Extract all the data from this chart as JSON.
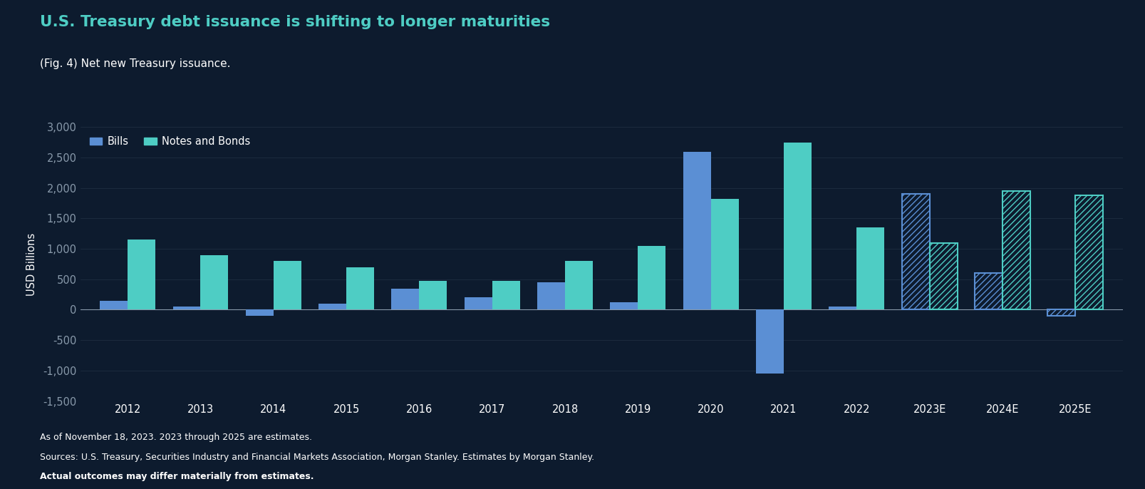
{
  "title": "U.S. Treasury debt issuance is shifting to longer maturities",
  "subtitle": "(Fig. 4) Net new Treasury issuance.",
  "ylabel": "USD Billions",
  "footnote1": "As of November 18, 2023. 2023 through 2025 are estimates.",
  "footnote2": "Sources: U.S. Treasury, Securities Industry and Financial Markets Association, Morgan Stanley. Estimates by Morgan Stanley.",
  "footnote3": "Actual outcomes may differ materially from estimates.",
  "categories": [
    "2012",
    "2013",
    "2014",
    "2015",
    "2016",
    "2017",
    "2018",
    "2019",
    "2020",
    "2021",
    "2022",
    "2023E",
    "2024E",
    "2025E"
  ],
  "is_estimate": [
    false,
    false,
    false,
    false,
    false,
    false,
    false,
    false,
    false,
    false,
    false,
    true,
    true,
    true
  ],
  "bills": [
    150,
    50,
    -100,
    100,
    350,
    200,
    450,
    125,
    2600,
    -1050,
    50,
    1900,
    600,
    -100
  ],
  "notes_bonds": [
    1150,
    900,
    800,
    700,
    475,
    475,
    800,
    1050,
    1825,
    2750,
    1350,
    1100,
    1950,
    1875
  ],
  "bg_color": "#0d1b2e",
  "bills_color": "#5b8fd4",
  "notes_color": "#4ecdc4",
  "title_color": "#4ecdc4",
  "subtitle_color": "#ffffff",
  "text_color": "#ffffff",
  "axis_color": "#8899aa",
  "grid_color": "#1e2e40",
  "zero_line_color": "#8899aa",
  "ylim": [
    -1500,
    3000
  ],
  "yticks": [
    -1500,
    -1000,
    -500,
    0,
    500,
    1000,
    1500,
    2000,
    2500,
    3000
  ],
  "bar_width": 0.38,
  "legend_bills_label": "Bills",
  "legend_notes_label": "Notes and Bonds"
}
